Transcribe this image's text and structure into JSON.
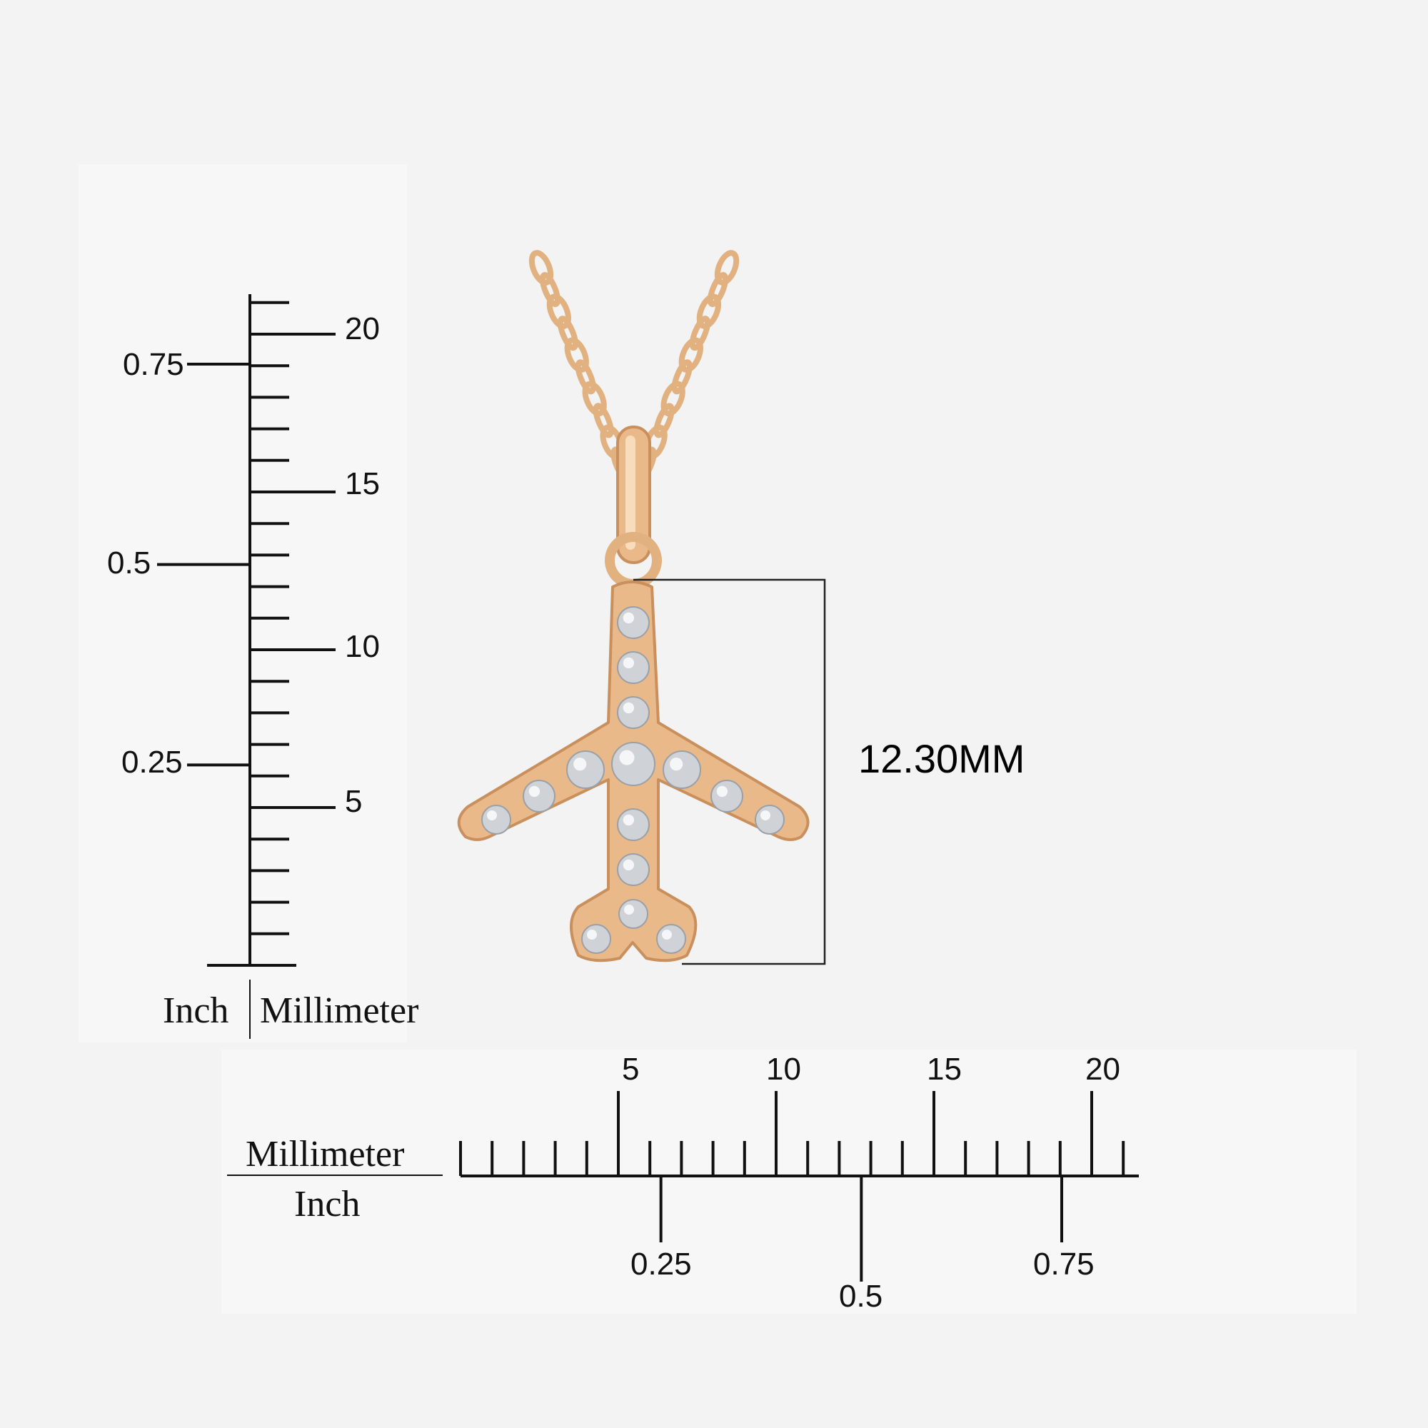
{
  "colors": {
    "background": "#f3f3f3",
    "ruler": "#111111",
    "gold": "#e9b989",
    "gold_dark": "#c98f5c",
    "gold_light": "#f8dcbb",
    "diamond": "#cfd3d8"
  },
  "vertical_ruler": {
    "mm_labels": [
      "5",
      "10",
      "15",
      "20"
    ],
    "inch_labels": [
      "0.25",
      "0.5",
      "0.75"
    ],
    "unit_inch": "Inch",
    "unit_mm": "Millimeter",
    "mm_max": 21,
    "inch_max": 0.75
  },
  "horizontal_ruler": {
    "mm_labels": [
      "5",
      "10",
      "15",
      "20"
    ],
    "inch_labels": [
      "0.25",
      "0.5",
      "0.75"
    ],
    "unit_mm": "Millimeter",
    "unit_inch": "Inch",
    "mm_max": 21,
    "inch_max": 0.75
  },
  "dimension": {
    "label": "12.30MM"
  },
  "product": {
    "icon": "airplane-pendant-icon",
    "chain_icon": "chain-icon"
  }
}
